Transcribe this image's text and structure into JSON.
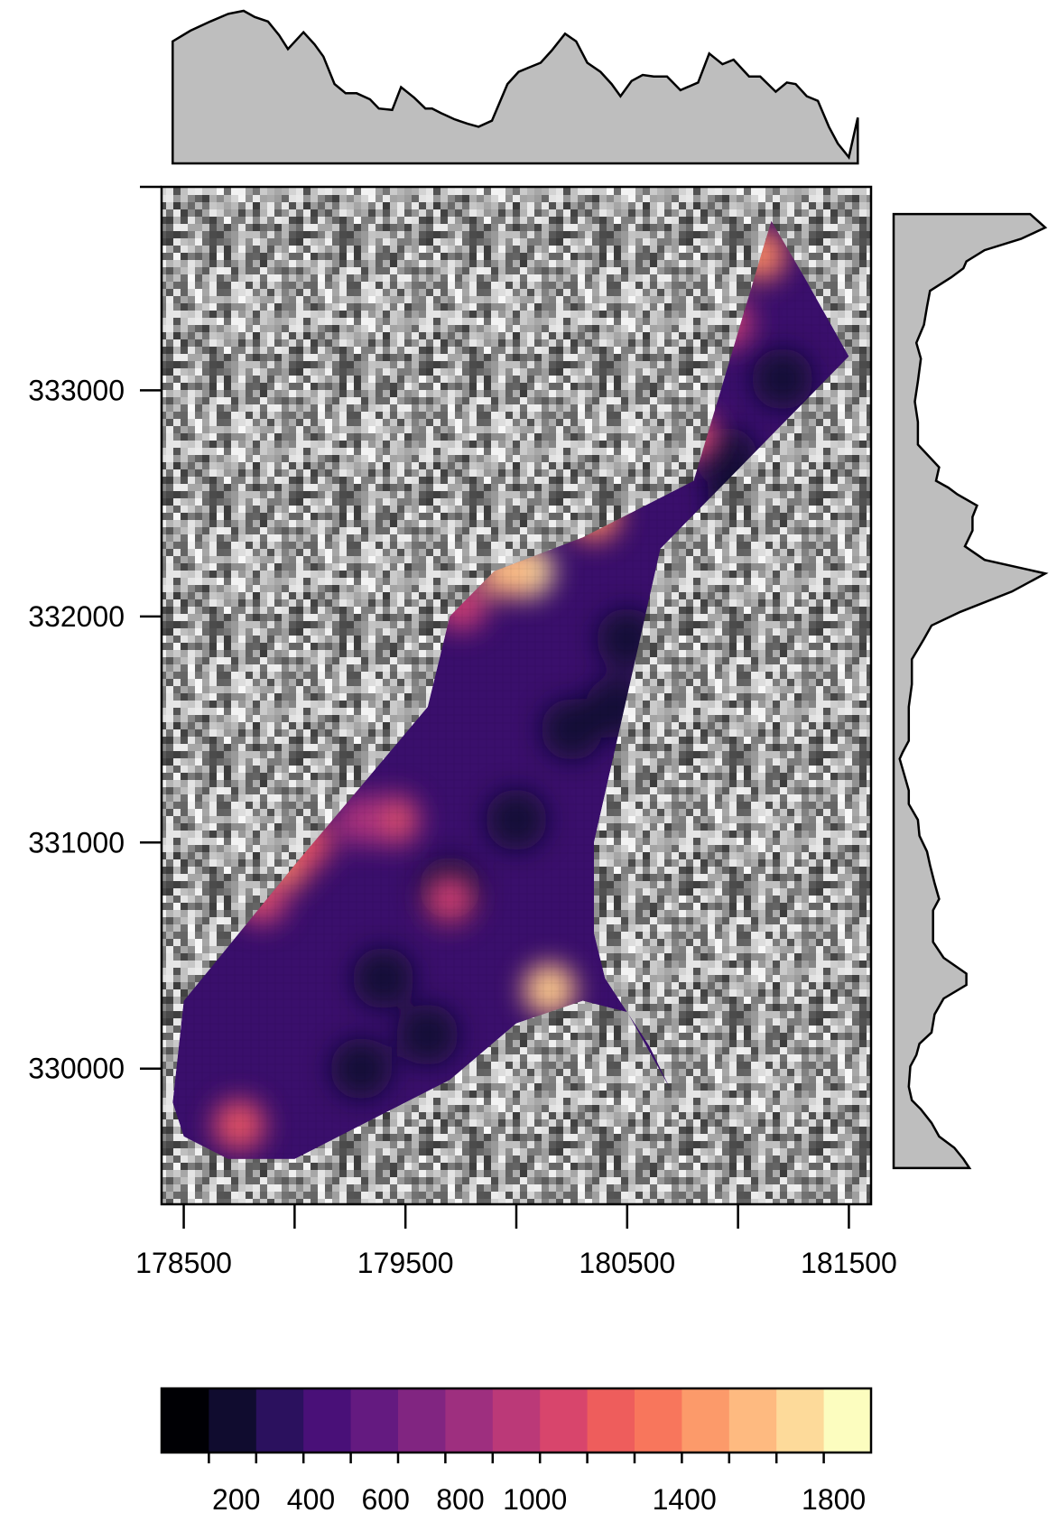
{
  "chart_data": {
    "type": "heatmap",
    "title": "",
    "xlabel": "",
    "ylabel": "",
    "x_ticks": [
      178500,
      179000,
      179500,
      180000,
      180500,
      181000,
      181500
    ],
    "x_tick_labels": [
      "178500",
      "179500",
      "180500",
      "181500"
    ],
    "y_ticks": [
      330000,
      331000,
      332000,
      333000
    ],
    "y_tick_labels": [
      "330000",
      "331000",
      "332000",
      "333000"
    ],
    "xlim": [
      178400,
      181600
    ],
    "ylim": [
      329400,
      333900
    ],
    "background": "grayscale random noise",
    "colorbar": {
      "breaks": [
        0,
        100,
        200,
        300,
        400,
        500,
        600,
        700,
        800,
        900,
        1000,
        1100,
        1200,
        1300,
        1400,
        1500,
        1600
      ],
      "tick_values": [
        200,
        400,
        600,
        800,
        1000,
        1400,
        1800
      ],
      "tick_labels": [
        "200",
        "400",
        "600",
        "800",
        "1000",
        "1400",
        "1800"
      ],
      "colors": [
        "#000004",
        "#100C2F",
        "#2B115E",
        "#491078",
        "#641A80",
        "#812581",
        "#9E2F7F",
        "#BB3978",
        "#D8456C",
        "#EE5D5C",
        "#F8765C",
        "#FC9A6A",
        "#FEBA80",
        "#FDDA9A",
        "#FCFDBF"
      ]
    },
    "region": {
      "polygon": [
        [
          178450,
          329850
        ],
        [
          178500,
          330300
        ],
        [
          179000,
          330900
        ],
        [
          179600,
          331600
        ],
        [
          179700,
          332000
        ],
        [
          179900,
          332200
        ],
        [
          180300,
          332350
        ],
        [
          180800,
          332600
        ],
        [
          181150,
          333750
        ],
        [
          181300,
          333500
        ],
        [
          181500,
          333150
        ],
        [
          180650,
          332300
        ],
        [
          180350,
          331000
        ],
        [
          180350,
          330600
        ],
        [
          180400,
          330400
        ],
        [
          180600,
          330100
        ],
        [
          180700,
          329900
        ],
        [
          180500,
          330250
        ],
        [
          180300,
          330300
        ],
        [
          180000,
          330200
        ],
        [
          179700,
          329950
        ],
        [
          179400,
          329800
        ],
        [
          179000,
          329600
        ],
        [
          178700,
          329600
        ],
        [
          178500,
          329700
        ]
      ],
      "value_range": [
        0,
        1900
      ],
      "hotspots": [
        {
          "x": 180150,
          "y": 330350,
          "value": 1550
        },
        {
          "x": 180050,
          "y": 332200,
          "value": 1650
        },
        {
          "x": 179950,
          "y": 332200,
          "value": 1450
        },
        {
          "x": 180350,
          "y": 332450,
          "value": 1300
        },
        {
          "x": 180800,
          "y": 332800,
          "value": 1000
        },
        {
          "x": 180950,
          "y": 333300,
          "value": 900
        },
        {
          "x": 181100,
          "y": 333600,
          "value": 1300
        },
        {
          "x": 178950,
          "y": 330900,
          "value": 1200
        },
        {
          "x": 179050,
          "y": 331000,
          "value": 1050
        },
        {
          "x": 178850,
          "y": 330750,
          "value": 1000
        },
        {
          "x": 179450,
          "y": 331100,
          "value": 950
        },
        {
          "x": 179300,
          "y": 331100,
          "value": 800
        },
        {
          "x": 178750,
          "y": 329750,
          "value": 1050
        },
        {
          "x": 179700,
          "y": 330750,
          "value": 900
        },
        {
          "x": 179750,
          "y": 332050,
          "value": 900
        }
      ],
      "cool_spots": [
        {
          "x": 179300,
          "y": 330000
        },
        {
          "x": 179600,
          "y": 330150
        },
        {
          "x": 179700,
          "y": 330800
        },
        {
          "x": 180000,
          "y": 331100
        },
        {
          "x": 180250,
          "y": 331500
        },
        {
          "x": 180450,
          "y": 331600
        },
        {
          "x": 180500,
          "y": 331900
        },
        {
          "x": 180950,
          "y": 332700
        },
        {
          "x": 181000,
          "y": 332500
        },
        {
          "x": 181200,
          "y": 333050
        },
        {
          "x": 179400,
          "y": 330400
        }
      ]
    },
    "top_profile": {
      "x": [
        178450,
        178530,
        178620,
        178700,
        178770,
        178820,
        178880,
        178930,
        178970,
        179040,
        179090,
        179130,
        179180,
        179230,
        179280,
        179340,
        179380,
        179440,
        179480,
        179540,
        179590,
        179620,
        179660,
        179720,
        179780,
        179830,
        179890,
        179960,
        180010,
        180060,
        180110,
        180160,
        180220,
        180270,
        180320,
        180380,
        180430,
        180470,
        180520,
        180570,
        180620,
        180680,
        180740,
        180820,
        180870,
        180930,
        180980,
        181050,
        181100,
        181170,
        181220,
        181260,
        181310,
        181360,
        181410,
        181450,
        181500,
        181540
      ],
      "y": [
        0.8,
        0.87,
        0.93,
        0.98,
        1.0,
        0.96,
        0.93,
        0.84,
        0.75,
        0.86,
        0.78,
        0.7,
        0.52,
        0.46,
        0.46,
        0.42,
        0.36,
        0.35,
        0.5,
        0.43,
        0.36,
        0.36,
        0.33,
        0.29,
        0.26,
        0.24,
        0.28,
        0.52,
        0.6,
        0.63,
        0.66,
        0.74,
        0.85,
        0.8,
        0.66,
        0.6,
        0.52,
        0.44,
        0.54,
        0.58,
        0.57,
        0.57,
        0.48,
        0.53,
        0.72,
        0.65,
        0.68,
        0.57,
        0.57,
        0.47,
        0.53,
        0.52,
        0.44,
        0.41,
        0.24,
        0.13,
        0.04,
        0.3
      ]
    },
    "right_profile": {
      "y": [
        329560,
        329600,
        329650,
        329700,
        329760,
        329820,
        329860,
        329920,
        330010,
        330060,
        330110,
        330160,
        330240,
        330310,
        330370,
        330420,
        330490,
        330560,
        330630,
        330700,
        330750,
        330820,
        330900,
        330960,
        331030,
        331100,
        331170,
        331230,
        331300,
        331370,
        331400,
        331450,
        331520,
        331600,
        331700,
        331810,
        331900,
        331960,
        332020,
        332110,
        332190,
        332250,
        332310,
        332380,
        332440,
        332490,
        332540,
        332570,
        332600,
        332660,
        332760,
        332860,
        332950,
        333040,
        333140,
        333210,
        333290,
        333370,
        333440,
        333500,
        333540,
        333570,
        333620,
        333670,
        333720,
        333780
      ],
      "x": [
        0.5,
        0.46,
        0.4,
        0.3,
        0.25,
        0.18,
        0.12,
        0.1,
        0.11,
        0.15,
        0.17,
        0.25,
        0.27,
        0.33,
        0.48,
        0.48,
        0.33,
        0.26,
        0.26,
        0.26,
        0.3,
        0.27,
        0.24,
        0.22,
        0.17,
        0.16,
        0.1,
        0.1,
        0.07,
        0.04,
        0.06,
        0.1,
        0.1,
        0.1,
        0.12,
        0.12,
        0.2,
        0.25,
        0.44,
        0.78,
        1.0,
        0.6,
        0.47,
        0.52,
        0.52,
        0.55,
        0.42,
        0.36,
        0.28,
        0.3,
        0.16,
        0.16,
        0.14,
        0.16,
        0.18,
        0.15,
        0.2,
        0.22,
        0.24,
        0.38,
        0.46,
        0.48,
        0.6,
        0.84,
        1.0,
        0.9
      ]
    }
  }
}
